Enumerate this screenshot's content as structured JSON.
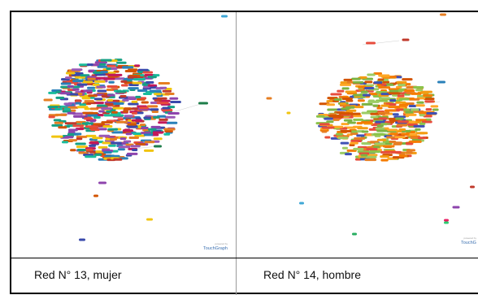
{
  "captions": {
    "left": "Red N° 13, mujer",
    "right": "Red N° 14, hombre"
  },
  "brand": {
    "left_text": "TouchGraph",
    "left_small": "powered by",
    "right_text": "TouchG",
    "right_small": "powered by"
  },
  "colors": {
    "left_palette": [
      "#c0392b",
      "#8e44ad",
      "#2980b9",
      "#e74c3c",
      "#d35400",
      "#16a085",
      "#e67e22",
      "#9b59b6",
      "#c2185b",
      "#3949ab",
      "#f1c40f",
      "#1abc9c"
    ],
    "right_palette": [
      "#e67e22",
      "#d35400",
      "#8bc34a",
      "#7cb342",
      "#f39c12",
      "#e74c3c",
      "#ffa726",
      "#9ccc65",
      "#3f51b5",
      "#f57c00"
    ],
    "border": "#000000",
    "divider": "#9a9a9a"
  }
}
